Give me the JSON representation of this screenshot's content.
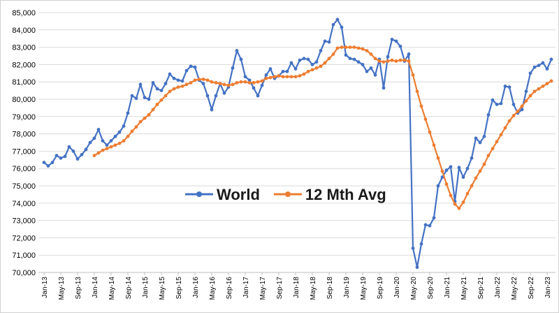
{
  "chart_data": {
    "type": "line",
    "categories": [
      "Jan-13",
      null,
      null,
      null,
      "May-13",
      null,
      null,
      null,
      "Sep-13",
      null,
      null,
      null,
      "Jan-14",
      null,
      null,
      null,
      "May-14",
      null,
      null,
      null,
      "Sep-14",
      null,
      null,
      null,
      "Jan-15",
      null,
      null,
      null,
      "May-15",
      null,
      null,
      null,
      "Sep-15",
      null,
      null,
      null,
      "Jan-16",
      null,
      null,
      null,
      "May-16",
      null,
      null,
      null,
      "Sep-16",
      null,
      null,
      null,
      "Jan-17",
      null,
      null,
      null,
      "May-17",
      null,
      null,
      null,
      "Sep-17",
      null,
      null,
      null,
      "Jan-18",
      null,
      null,
      null,
      "May-18",
      null,
      null,
      null,
      "Sep-18",
      null,
      null,
      null,
      "Jan-19",
      null,
      null,
      null,
      "May-19",
      null,
      null,
      null,
      "Sep-19",
      null,
      null,
      null,
      "Jan-20",
      null,
      null,
      null,
      "May-20",
      null,
      null,
      null,
      "Sep-20",
      null,
      null,
      null,
      "Jan-21",
      null,
      null,
      null,
      "May-21",
      null,
      null,
      null,
      "Sep-21",
      null,
      null,
      null,
      "Jan-22",
      null,
      null,
      null,
      "May-22",
      null,
      null,
      null,
      "Sep-22",
      null,
      null,
      null,
      "Jan-23",
      null
    ],
    "series": [
      {
        "name": "World",
        "color": "#4472c4",
        "values": [
          76350,
          76150,
          76350,
          76750,
          76600,
          76700,
          77250,
          77000,
          76550,
          76800,
          77100,
          77500,
          77750,
          78250,
          77600,
          77350,
          77600,
          77850,
          78100,
          78450,
          79200,
          80200,
          80050,
          80850,
          80100,
          80000,
          80950,
          80600,
          80500,
          80900,
          81450,
          81200,
          81100,
          81050,
          81650,
          81900,
          81850,
          81100,
          80900,
          80200,
          79400,
          80200,
          80900,
          80350,
          80700,
          81800,
          82800,
          82300,
          81300,
          81100,
          80650,
          80200,
          80800,
          81400,
          81750,
          81200,
          81350,
          81600,
          81600,
          82100,
          81750,
          82250,
          82350,
          82300,
          82000,
          82150,
          82800,
          83350,
          83300,
          84300,
          84600,
          84150,
          82550,
          82350,
          82300,
          82150,
          82000,
          81600,
          81800,
          81400,
          82300,
          80650,
          82450,
          83450,
          83350,
          83050,
          82200,
          82600,
          71400,
          70300,
          71650,
          72750,
          72700,
          73150,
          75000,
          75500,
          75900,
          76100,
          74100,
          76050,
          75500,
          76000,
          76600,
          77750,
          77500,
          77850,
          79100,
          79950,
          79700,
          79750,
          80750,
          80700,
          79700,
          79200,
          79400,
          80450,
          81500,
          81850,
          81950,
          82100,
          81750,
          82300
        ]
      },
      {
        "name": "12 Mth Avg",
        "color": "#ed7d31",
        "values": [
          null,
          null,
          null,
          null,
          null,
          null,
          null,
          null,
          null,
          null,
          null,
          null,
          76750,
          76900,
          77050,
          77150,
          77250,
          77350,
          77450,
          77600,
          77850,
          78150,
          78400,
          78700,
          78900,
          79100,
          79400,
          79700,
          79950,
          80200,
          80450,
          80600,
          80700,
          80750,
          80850,
          80950,
          81100,
          81150,
          81150,
          81100,
          81000,
          80950,
          80900,
          80850,
          80800,
          80850,
          80950,
          81000,
          81000,
          80950,
          80950,
          81000,
          81050,
          81200,
          81250,
          81300,
          81350,
          81300,
          81300,
          81300,
          81300,
          81350,
          81450,
          81600,
          81700,
          81800,
          81900,
          82100,
          82350,
          82600,
          82950,
          83000,
          83000,
          83000,
          83000,
          82950,
          82900,
          82800,
          82600,
          82350,
          82200,
          82150,
          82200,
          82250,
          82200,
          82250,
          82250,
          82200,
          81400,
          80450,
          79600,
          78850,
          78100,
          77350,
          76600,
          75850,
          75100,
          74450,
          73950,
          73700,
          74050,
          74550,
          75000,
          75450,
          75850,
          76250,
          76750,
          77150,
          77550,
          77950,
          78350,
          78750,
          79050,
          79300,
          79600,
          79900,
          80200,
          80450,
          80600,
          80750,
          80900,
          81050
        ]
      }
    ],
    "ylim": [
      70000,
      85000
    ],
    "yticks": [
      {
        "value": 70000,
        "label": "70,000"
      },
      {
        "value": 71000,
        "label": "71,000"
      },
      {
        "value": 72000,
        "label": "72,000"
      },
      {
        "value": 73000,
        "label": "73,000"
      },
      {
        "value": 74000,
        "label": "74,000"
      },
      {
        "value": 75000,
        "label": "75,000"
      },
      {
        "value": 76000,
        "label": "76,000"
      },
      {
        "value": 77000,
        "label": "77,000"
      },
      {
        "value": 78000,
        "label": "78,000"
      },
      {
        "value": 79000,
        "label": "79,000"
      },
      {
        "value": 80000,
        "label": "80,000"
      },
      {
        "value": 81000,
        "label": "81,000"
      },
      {
        "value": 82000,
        "label": "82,000"
      },
      {
        "value": 83000,
        "label": "83,000"
      },
      {
        "value": 84000,
        "label": "84,000"
      },
      {
        "value": 85000,
        "label": "85,000"
      }
    ],
    "grid": true,
    "legend": "center"
  }
}
